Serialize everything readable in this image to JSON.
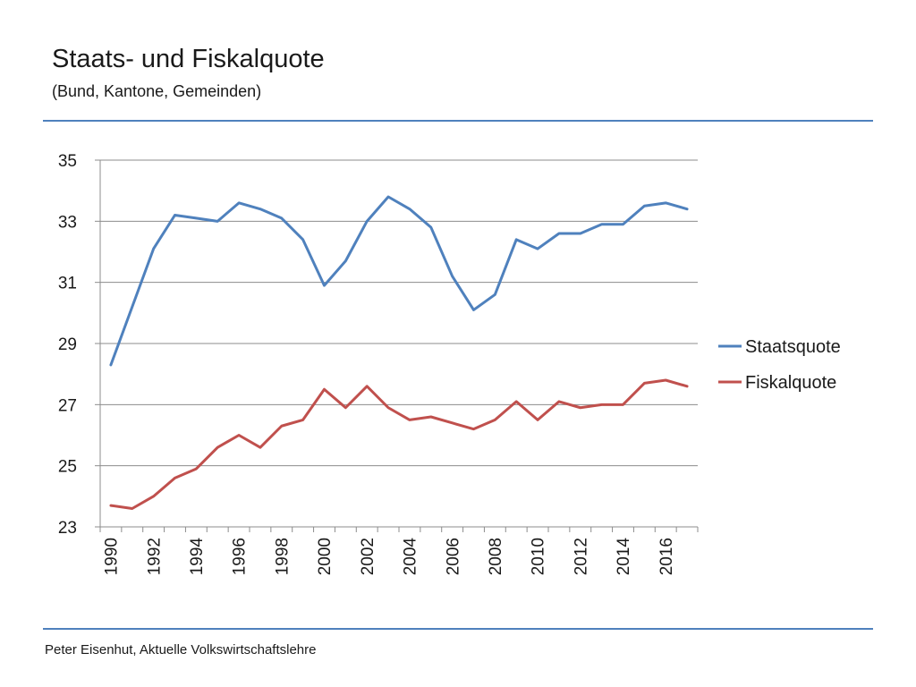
{
  "slide": {
    "title": "Staats- und Fiskalquote",
    "subtitle": "(Bund, Kantone, Gemeinden)",
    "footer": "Peter Eisenhut, Aktuelle Volkswirtschaftslehre"
  },
  "colors": {
    "rule": "#4f81bd",
    "staatsquote": "#4f81bd",
    "fiskalquote": "#c0504d",
    "grid": "#8c8c8c"
  },
  "chart_data": {
    "type": "line",
    "title": "Staats- und Fiskalquote",
    "subtitle": "(Bund, Kantone, Gemeinden)",
    "xlabel": "",
    "ylabel": "",
    "x": [
      1990,
      1991,
      1992,
      1993,
      1994,
      1995,
      1996,
      1997,
      1998,
      1999,
      2000,
      2001,
      2002,
      2003,
      2004,
      2005,
      2006,
      2007,
      2008,
      2009,
      2010,
      2011,
      2012,
      2013,
      2014,
      2015,
      2016,
      2017
    ],
    "x_tick_labels": [
      "1990",
      "1992",
      "1994",
      "1996",
      "1998",
      "2000",
      "2002",
      "2004",
      "2006",
      "2008",
      "2010",
      "2012",
      "2014",
      "2016"
    ],
    "y_ticks": [
      23,
      25,
      27,
      29,
      31,
      33,
      35
    ],
    "ylim": [
      23,
      35
    ],
    "grid": true,
    "legend_position": "right",
    "series": [
      {
        "name": "Staatsquote",
        "color": "#4f81bd",
        "values": [
          28.3,
          30.2,
          32.1,
          33.2,
          33.1,
          33.0,
          33.6,
          33.4,
          33.1,
          32.4,
          30.9,
          31.7,
          33.0,
          33.8,
          33.4,
          32.8,
          31.2,
          30.1,
          30.6,
          32.4,
          32.1,
          32.6,
          32.6,
          32.9,
          32.9,
          33.5,
          33.6,
          33.4
        ]
      },
      {
        "name": "Fiskalquote",
        "color": "#c0504d",
        "values": [
          23.7,
          23.6,
          24.0,
          24.6,
          24.9,
          25.6,
          26.0,
          25.6,
          26.3,
          26.5,
          27.5,
          26.9,
          27.6,
          26.9,
          26.5,
          26.6,
          26.4,
          26.2,
          26.5,
          27.1,
          26.5,
          27.1,
          26.9,
          27.0,
          27.0,
          27.7,
          27.8,
          27.6
        ]
      }
    ]
  }
}
